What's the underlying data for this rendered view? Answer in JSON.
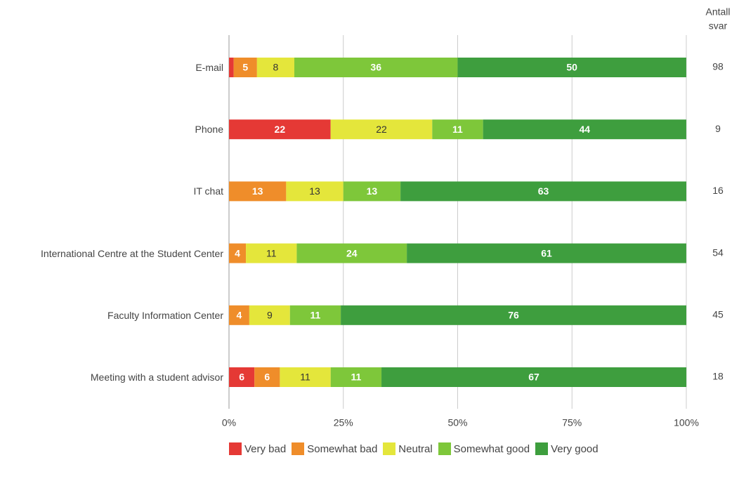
{
  "chart_data": {
    "type": "stacked_bar_horizontal",
    "categories": [
      "E-mail",
      "Phone",
      "IT chat",
      "International Centre at the Student Center",
      "Faculty Information Center",
      "Meeting with a student advisor"
    ],
    "series": [
      {
        "name": "Very bad",
        "color": "#e53935",
        "values": [
          1.02,
          22.22,
          0,
          0,
          0,
          5.56
        ],
        "value_labels": [
          null,
          "22",
          null,
          null,
          null,
          "6"
        ]
      },
      {
        "name": "Somewhat bad",
        "color": "#ef8d2a",
        "values": [
          5.1,
          0,
          12.5,
          3.7,
          4.44,
          5.56
        ],
        "value_labels": [
          "5",
          null,
          "13",
          "4",
          "4",
          "6"
        ]
      },
      {
        "name": "Neutral",
        "color": "#e4e63b",
        "values": [
          8.16,
          22.22,
          12.5,
          11.11,
          8.89,
          11.11
        ],
        "value_labels": [
          "8",
          "22",
          "13",
          "11",
          "9",
          "11"
        ]
      },
      {
        "name": "Somewhat good",
        "color": "#7ec73a",
        "values": [
          35.71,
          11.11,
          12.5,
          24.07,
          11.11,
          11.11
        ],
        "value_labels": [
          "36",
          "11",
          "13",
          "24",
          "11",
          "11"
        ]
      },
      {
        "name": "Very good",
        "color": "#3e9e3e",
        "values": [
          50,
          44.44,
          62.5,
          61.11,
          75.56,
          66.67
        ],
        "value_labels": [
          "50",
          "44",
          "63",
          "61",
          "76",
          "67"
        ]
      }
    ],
    "count_header": [
      "Antall",
      "svar"
    ],
    "counts": [
      98,
      9,
      16,
      54,
      45,
      18
    ],
    "xlim": [
      0,
      100
    ],
    "xticks": [
      {
        "value": 0,
        "label": "0%"
      },
      {
        "value": 25,
        "label": "25%"
      },
      {
        "value": 50,
        "label": "50%"
      },
      {
        "value": 75,
        "label": "75%"
      },
      {
        "value": 100,
        "label": "100%"
      }
    ],
    "grid": true,
    "legend": "bottom"
  }
}
